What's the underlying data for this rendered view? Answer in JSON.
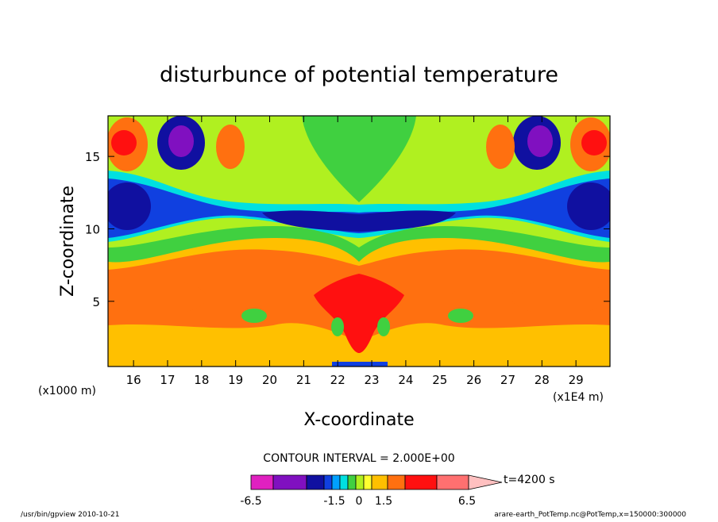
{
  "chart_data": {
    "type": "heatmap",
    "title": "disturbunce of potential temperature",
    "xlabel": "X-coordinate",
    "ylabel": "Z-coordinate",
    "x_unit_left": "(x1000 m)",
    "x_unit_right": "(x1E4 m)",
    "x_ticks": [
      "16",
      "17",
      "18",
      "19",
      "20",
      "21",
      "22",
      "23",
      "24",
      "25",
      "26",
      "27",
      "28",
      "29"
    ],
    "y_ticks": [
      "5",
      "10",
      "15"
    ],
    "xlim": [
      15.25,
      30.0
    ],
    "ylim": [
      0.5,
      17.8
    ],
    "contour_interval_label": "CONTOUR INTERVAL = 2.000E+00",
    "time_label": "t=4200 s",
    "colorbar": {
      "tick_labels": [
        "-6.5",
        "-1.5",
        "0",
        "1.5",
        "6.5"
      ],
      "levels": [
        -6.5,
        -4.5,
        -2.5,
        -1.5,
        -1.0,
        -0.5,
        0.0,
        0.5,
        1.0,
        1.5,
        2.5,
        4.5,
        6.5
      ],
      "colors": [
        "#e020c0",
        "#8010c0",
        "#1010a0",
        "#1040e0",
        "#00a0ff",
        "#00e0e0",
        "#40d040",
        "#b0f020",
        "#ffff30",
        "#ffc000",
        "#ff7010",
        "#ff1010",
        "#ff7070",
        "#ffc0c0"
      ]
    },
    "footer_left": "/usr/bin/gpview   2010-10-21",
    "footer_right": "arare-earth_PotTemp.nc@PotTemp,x=150000:300000"
  }
}
